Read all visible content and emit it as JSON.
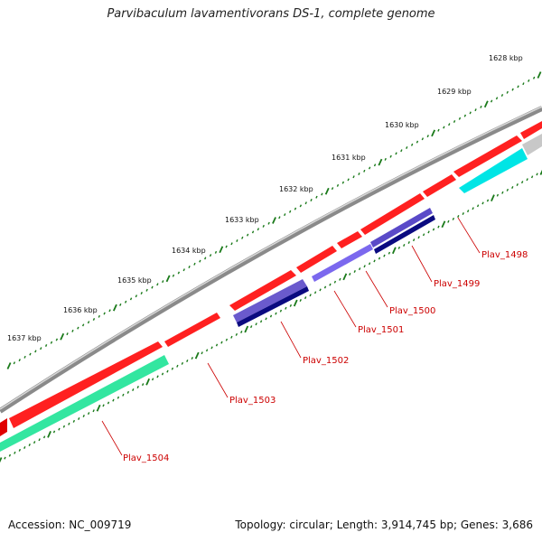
{
  "title": "Parvibaculum lavamentivorans DS-1, complete genome",
  "footer": {
    "accession": "Accession: NC_009719",
    "topology": "Topology: circular; Length: 3,914,745 bp; Genes: 3,686"
  },
  "kbp_labels": [
    "1628 kbp",
    "1629 kbp",
    "1630 kbp",
    "1631 kbp",
    "1632 kbp",
    "1633 kbp",
    "1634 kbp",
    "1635 kbp",
    "1636 kbp",
    "1637 kbp"
  ],
  "gene_labels": [
    "Plav_1498",
    "Plav_1499",
    "Plav_1500",
    "Plav_1501",
    "Plav_1502",
    "Plav_1503",
    "Plav_1504"
  ],
  "colors": {
    "forward": "#ff0000",
    "backbone": "#808080",
    "tick": "#1a7a1a",
    "label": "#cc0000",
    "cyan": "#00e5e5",
    "teal": "#33e6a0",
    "navy": "#0a0a80",
    "violet": "#6a5acd",
    "lightgray": "#c8c8c8"
  }
}
